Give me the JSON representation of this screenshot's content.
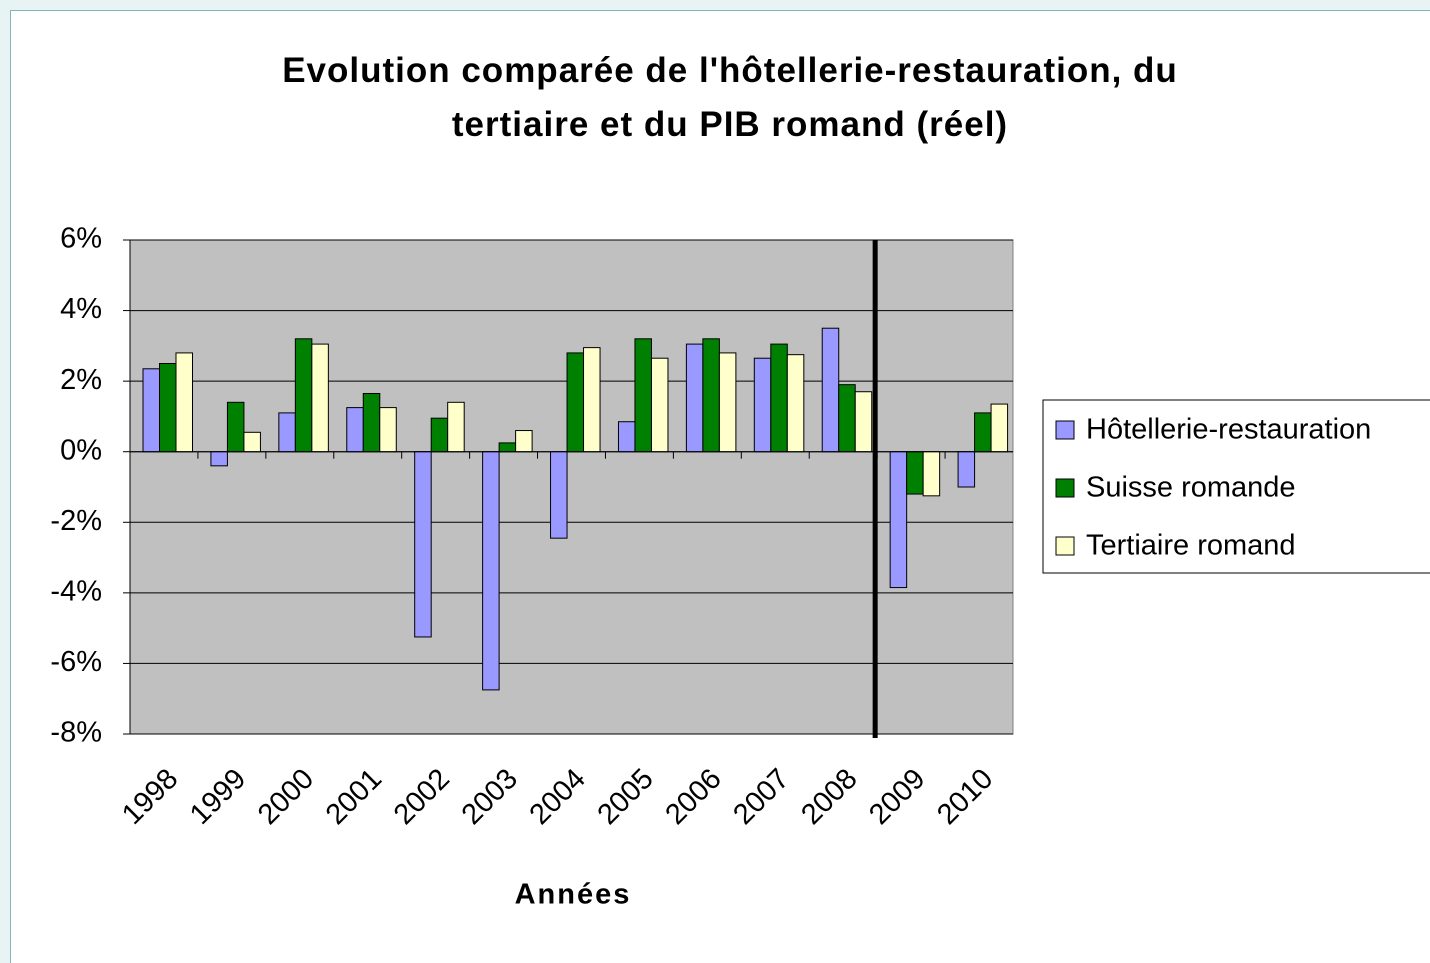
{
  "chart_data": {
    "type": "bar",
    "title": "Evolution comparée de l'hôtellerie-restauration, du tertiaire et du PIB romand (réel)",
    "x_label": "Années",
    "categories": [
      "1998",
      "1999",
      "2000",
      "2001",
      "2002",
      "2003",
      "2004",
      "2005",
      "2006",
      "2007",
      "2008",
      "2009",
      "2010"
    ],
    "series": [
      {
        "name": "Hôtellerie-restauration",
        "color": "#9999ff",
        "values": [
          2.35,
          -0.4,
          1.1,
          1.25,
          -5.25,
          -6.75,
          -2.45,
          0.85,
          3.05,
          2.65,
          3.5,
          -3.85,
          -1.0
        ]
      },
      {
        "name": "Suisse romande",
        "color": "#008000",
        "values": [
          2.5,
          1.4,
          3.2,
          1.65,
          0.95,
          0.25,
          2.8,
          3.2,
          3.2,
          3.05,
          1.9,
          -1.2,
          1.1
        ]
      },
      {
        "name": "Tertiaire romand",
        "color": "#ffffcc",
        "values": [
          2.8,
          0.55,
          3.05,
          1.25,
          1.4,
          0.6,
          2.95,
          2.65,
          2.8,
          2.75,
          1.7,
          -1.25,
          1.35
        ]
      }
    ],
    "ylim": [
      -8,
      6
    ],
    "yticks": [
      {
        "value": -8,
        "label": "-8%"
      },
      {
        "value": -6,
        "label": "-6%"
      },
      {
        "value": -4,
        "label": "-4%"
      },
      {
        "value": -2,
        "label": "-2%"
      },
      {
        "value": 0,
        "label": "0%"
      },
      {
        "value": 2,
        "label": "2%"
      },
      {
        "value": 4,
        "label": "4%"
      },
      {
        "value": 6,
        "label": "6%"
      }
    ],
    "grid": true,
    "legend": "right"
  }
}
